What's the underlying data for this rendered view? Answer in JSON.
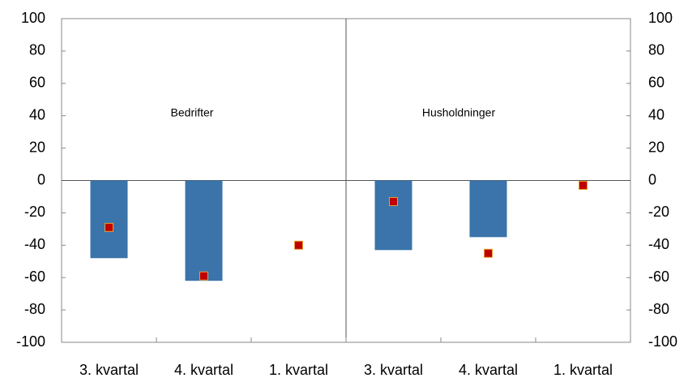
{
  "chart_data": {
    "type": "bar",
    "categories": [
      "3. kvartal",
      "4. kvartal",
      "1. kvartal",
      "3. kvartal",
      "4. kvartal",
      "1. kvartal"
    ],
    "annotations": [
      "Bedrifter",
      "Husholdninger"
    ],
    "series": [
      {
        "type": "bar",
        "color": "#3a74aa",
        "values": [
          -48,
          -62,
          null,
          -43,
          -35,
          null
        ]
      },
      {
        "type": "scatter",
        "marker": "square",
        "color": "#c00000",
        "values": [
          -29,
          -59,
          -40,
          -13,
          -45,
          -3
        ]
      }
    ],
    "ylim": [
      -100,
      100
    ],
    "yticks": [
      -100,
      -80,
      -60,
      -40,
      -20,
      0,
      20,
      40,
      60,
      80,
      100
    ],
    "y2lim": [
      -100,
      100
    ],
    "y2ticks": [
      -100,
      -80,
      -60,
      -40,
      -20,
      0,
      20,
      40,
      60,
      80,
      100
    ],
    "grid": false
  }
}
